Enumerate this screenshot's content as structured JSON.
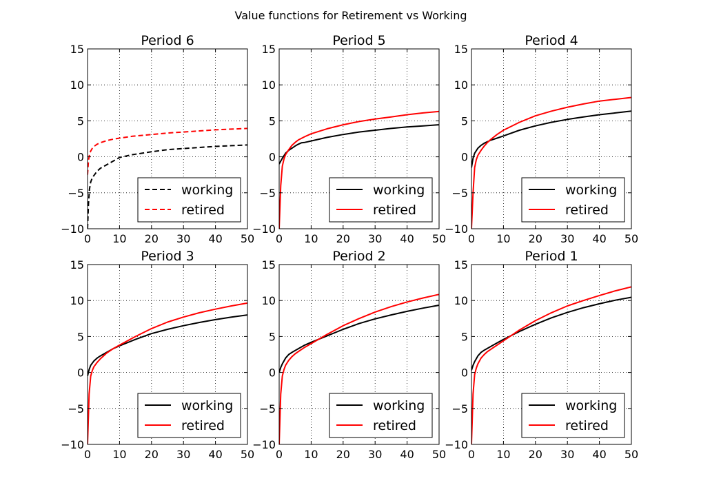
{
  "figure": {
    "title": "Value functions for Retirement vs Working"
  },
  "chart_data": [
    {
      "type": "line",
      "title": "Period 6",
      "xlim": [
        0,
        50
      ],
      "ylim": [
        -10,
        15
      ],
      "xticks": [
        "0",
        "10",
        "20",
        "30",
        "40",
        "50"
      ],
      "yticks": [
        "−10",
        "−5",
        "0",
        "5",
        "10",
        "15"
      ],
      "grid": true,
      "legend_position": "lower-right",
      "series": [
        {
          "name": "working",
          "color": "#000000",
          "dashed": true,
          "x": [
            0,
            0.3,
            0.6,
            1,
            1.5,
            2,
            3,
            4,
            6,
            8,
            10,
            14,
            20,
            25,
            30,
            35,
            40,
            45,
            50
          ],
          "y": [
            -10,
            -6.5,
            -4.5,
            -3.5,
            -2.9,
            -2.6,
            -2.0,
            -1.6,
            -1.1,
            -0.6,
            -0.1,
            0.3,
            0.7,
            1.0,
            1.15,
            1.3,
            1.45,
            1.55,
            1.65
          ]
        },
        {
          "name": "retired",
          "color": "#ff0000",
          "dashed": true,
          "x": [
            0,
            0.3,
            0.6,
            1,
            1.5,
            2,
            3,
            4,
            6,
            8,
            10,
            14,
            20,
            25,
            30,
            35,
            40,
            45,
            50
          ],
          "y": [
            -2.5,
            -0.5,
            0.3,
            0.8,
            1.2,
            1.45,
            1.75,
            1.95,
            2.25,
            2.45,
            2.6,
            2.85,
            3.1,
            3.3,
            3.45,
            3.6,
            3.75,
            3.85,
            3.95
          ]
        }
      ]
    },
    {
      "type": "line",
      "title": "Period 5",
      "xlim": [
        0,
        50
      ],
      "ylim": [
        -10,
        15
      ],
      "xticks": [
        "0",
        "10",
        "20",
        "30",
        "40",
        "50"
      ],
      "yticks": [
        "−10",
        "−5",
        "0",
        "5",
        "10",
        "15"
      ],
      "grid": true,
      "legend_position": "lower-right",
      "series": [
        {
          "name": "working",
          "color": "#000000",
          "dashed": false,
          "x": [
            0,
            1,
            2,
            3,
            4,
            5,
            6,
            7,
            8,
            9,
            10,
            15,
            20,
            25,
            30,
            35,
            40,
            45,
            50
          ],
          "y": [
            -1.0,
            -0.2,
            0.5,
            0.9,
            1.2,
            1.5,
            1.75,
            1.95,
            2.0,
            2.1,
            2.2,
            2.7,
            3.1,
            3.45,
            3.7,
            3.95,
            4.15,
            4.3,
            4.45
          ]
        },
        {
          "name": "retired",
          "color": "#ff0000",
          "dashed": false,
          "x": [
            0,
            0.5,
            1,
            1.5,
            2,
            3,
            4,
            5,
            6,
            8,
            10,
            15,
            20,
            25,
            30,
            35,
            40,
            45,
            50
          ],
          "y": [
            -10,
            -4.0,
            -1.3,
            -0.3,
            0.3,
            1.0,
            1.6,
            2.0,
            2.35,
            2.8,
            3.2,
            3.9,
            4.45,
            4.9,
            5.25,
            5.55,
            5.85,
            6.1,
            6.3
          ]
        }
      ]
    },
    {
      "type": "line",
      "title": "Period 4",
      "xlim": [
        0,
        50
      ],
      "ylim": [
        -10,
        15
      ],
      "xticks": [
        "0",
        "10",
        "20",
        "30",
        "40",
        "50"
      ],
      "yticks": [
        "−10",
        "−5",
        "0",
        "5",
        "10",
        "15"
      ],
      "grid": true,
      "legend_position": "lower-right",
      "series": [
        {
          "name": "working",
          "color": "#000000",
          "dashed": false,
          "x": [
            0,
            0.5,
            1,
            2,
            3,
            4,
            5,
            6,
            8,
            10,
            15,
            20,
            25,
            30,
            35,
            40,
            45,
            50
          ],
          "y": [
            -1.5,
            -0.2,
            0.5,
            1.2,
            1.6,
            1.9,
            2.1,
            2.3,
            2.6,
            2.9,
            3.7,
            4.3,
            4.8,
            5.2,
            5.55,
            5.85,
            6.1,
            6.35
          ]
        },
        {
          "name": "retired",
          "color": "#ff0000",
          "dashed": false,
          "x": [
            0,
            0.5,
            1,
            1.5,
            2,
            3,
            4,
            5,
            6,
            8,
            10,
            15,
            20,
            25,
            30,
            35,
            40,
            45,
            50
          ],
          "y": [
            -10,
            -5.0,
            -1.5,
            -0.4,
            0.2,
            0.9,
            1.5,
            2.0,
            2.4,
            3.1,
            3.7,
            4.8,
            5.7,
            6.35,
            6.9,
            7.35,
            7.75,
            8.0,
            8.25
          ]
        }
      ]
    },
    {
      "type": "line",
      "title": "Period 3",
      "xlim": [
        0,
        50
      ],
      "ylim": [
        -10,
        15
      ],
      "xticks": [
        "0",
        "10",
        "20",
        "30",
        "40",
        "50"
      ],
      "yticks": [
        "−10",
        "−5",
        "0",
        "5",
        "10",
        "15"
      ],
      "grid": true,
      "legend_position": "lower-right",
      "series": [
        {
          "name": "working",
          "color": "#000000",
          "dashed": false,
          "x": [
            0,
            0.5,
            1,
            2,
            3,
            4,
            6,
            8,
            10,
            15,
            20,
            25,
            30,
            35,
            40,
            45,
            50
          ],
          "y": [
            -0.5,
            0.4,
            1.0,
            1.6,
            2.0,
            2.3,
            2.8,
            3.3,
            3.7,
            4.6,
            5.4,
            6.0,
            6.5,
            6.95,
            7.35,
            7.7,
            8.0
          ]
        },
        {
          "name": "retired",
          "color": "#ff0000",
          "dashed": false,
          "x": [
            0,
            0.5,
            1,
            1.5,
            2,
            3,
            4,
            5,
            6,
            8,
            10,
            15,
            20,
            25,
            30,
            35,
            40,
            45,
            50
          ],
          "y": [
            -10,
            -3.0,
            -0.5,
            0.3,
            0.8,
            1.4,
            1.9,
            2.3,
            2.7,
            3.3,
            3.8,
            5.0,
            6.1,
            7.0,
            7.7,
            8.3,
            8.8,
            9.25,
            9.65
          ]
        }
      ]
    },
    {
      "type": "line",
      "title": "Period 2",
      "xlim": [
        0,
        50
      ],
      "ylim": [
        -10,
        15
      ],
      "xticks": [
        "0",
        "10",
        "20",
        "30",
        "40",
        "50"
      ],
      "yticks": [
        "−10",
        "−5",
        "0",
        "5",
        "10",
        "15"
      ],
      "grid": true,
      "legend_position": "lower-right",
      "series": [
        {
          "name": "working",
          "color": "#000000",
          "dashed": false,
          "x": [
            0,
            0.5,
            1,
            2,
            3,
            4,
            6,
            8,
            10,
            15,
            20,
            25,
            30,
            35,
            40,
            45,
            50
          ],
          "y": [
            0.0,
            0.7,
            1.2,
            2.0,
            2.5,
            2.8,
            3.3,
            3.8,
            4.2,
            5.1,
            6.0,
            6.8,
            7.45,
            8.0,
            8.5,
            8.95,
            9.35
          ]
        },
        {
          "name": "retired",
          "color": "#ff0000",
          "dashed": false,
          "x": [
            0,
            0.5,
            1,
            1.5,
            2,
            3,
            4,
            5,
            6,
            8,
            10,
            15,
            20,
            25,
            30,
            35,
            40,
            45,
            50
          ],
          "y": [
            -10,
            -3.0,
            -0.5,
            0.4,
            1.0,
            1.7,
            2.2,
            2.6,
            2.9,
            3.5,
            4.0,
            5.3,
            6.5,
            7.5,
            8.4,
            9.15,
            9.8,
            10.35,
            10.85
          ]
        }
      ]
    },
    {
      "type": "line",
      "title": "Period 1",
      "xlim": [
        0,
        50
      ],
      "ylim": [
        -10,
        15
      ],
      "xticks": [
        "0",
        "10",
        "20",
        "30",
        "40",
        "50"
      ],
      "yticks": [
        "−10",
        "−5",
        "0",
        "5",
        "10",
        "15"
      ],
      "grid": true,
      "legend_position": "lower-right",
      "series": [
        {
          "name": "working",
          "color": "#000000",
          "dashed": false,
          "x": [
            0,
            0.5,
            1,
            2,
            3,
            4,
            6,
            8,
            10,
            15,
            20,
            25,
            30,
            35,
            40,
            45,
            50
          ],
          "y": [
            0.3,
            1.0,
            1.5,
            2.3,
            2.8,
            3.1,
            3.6,
            4.1,
            4.6,
            5.7,
            6.7,
            7.6,
            8.35,
            9.0,
            9.55,
            10.05,
            10.45
          ]
        },
        {
          "name": "retired",
          "color": "#ff0000",
          "dashed": false,
          "x": [
            0,
            0.5,
            1,
            1.5,
            2,
            3,
            4,
            5,
            6,
            8,
            10,
            15,
            20,
            25,
            30,
            35,
            40,
            45,
            50
          ],
          "y": [
            -10,
            -3.0,
            -0.3,
            0.6,
            1.2,
            2.0,
            2.5,
            2.9,
            3.2,
            3.8,
            4.4,
            5.9,
            7.2,
            8.3,
            9.25,
            10.0,
            10.7,
            11.35,
            11.9
          ]
        }
      ]
    }
  ]
}
